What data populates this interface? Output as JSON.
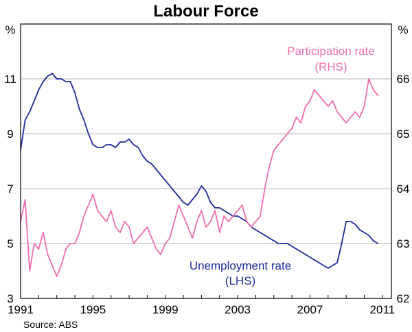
{
  "chart_data": {
    "type": "line",
    "title": "Labour Force",
    "source": "Source: ABS",
    "left_axis": {
      "unit": "%",
      "range": [
        3,
        13
      ],
      "ticks": [
        "3",
        "5",
        "7",
        "9",
        "11"
      ]
    },
    "right_axis": {
      "unit": "%",
      "range": [
        62,
        67
      ],
      "ticks": [
        "62",
        "63",
        "64",
        "65",
        "66"
      ]
    },
    "x_axis": {
      "range": [
        1991,
        2011.5
      ],
      "ticks": [
        "1991",
        "1995",
        "1999",
        "2003",
        "2007",
        "2011"
      ]
    },
    "grid": true,
    "colors": {
      "unemployment": "#1f2a9c",
      "participation": "#ee6fae"
    },
    "series": [
      {
        "name": "Unemployment rate",
        "annotation": [
          "Unemployment rate",
          "(LHS)"
        ],
        "axis": "left",
        "x": [
          1991.0,
          1991.25,
          1991.5,
          1991.75,
          1992.0,
          1992.25,
          1992.5,
          1992.75,
          1993.0,
          1993.25,
          1993.5,
          1993.75,
          1994.0,
          1994.25,
          1994.5,
          1994.75,
          1995.0,
          1995.25,
          1995.5,
          1995.75,
          1996.0,
          1996.25,
          1996.5,
          1996.75,
          1997.0,
          1997.25,
          1997.5,
          1997.75,
          1998.0,
          1998.25,
          1998.5,
          1998.75,
          1999.0,
          1999.25,
          1999.5,
          1999.75,
          2000.0,
          2000.25,
          2000.5,
          2000.75,
          2001.0,
          2001.25,
          2001.5,
          2001.75,
          2002.0,
          2002.25,
          2002.5,
          2002.75,
          2003.0,
          2003.25,
          2003.5,
          2003.75,
          2004.0,
          2004.25,
          2004.5,
          2004.75,
          2005.0,
          2005.25,
          2005.5,
          2005.75,
          2006.0,
          2006.25,
          2006.5,
          2006.75,
          2007.0,
          2007.25,
          2007.5,
          2007.75,
          2008.0,
          2008.25,
          2008.5,
          2008.75,
          2009.0,
          2009.25,
          2009.5,
          2009.75,
          2010.0,
          2010.25,
          2010.5,
          2010.75
        ],
        "values": [
          8.4,
          9.5,
          9.8,
          10.2,
          10.6,
          10.9,
          11.1,
          11.2,
          11.0,
          11.0,
          10.9,
          10.9,
          10.5,
          9.9,
          9.5,
          9.0,
          8.6,
          8.5,
          8.5,
          8.6,
          8.6,
          8.5,
          8.7,
          8.7,
          8.8,
          8.6,
          8.5,
          8.2,
          8.0,
          7.9,
          7.7,
          7.5,
          7.3,
          7.1,
          6.9,
          6.7,
          6.5,
          6.4,
          6.6,
          6.8,
          7.1,
          6.9,
          6.5,
          6.3,
          6.3,
          6.2,
          6.1,
          6.0,
          6.0,
          5.9,
          5.8,
          5.6,
          5.5,
          5.4,
          5.3,
          5.2,
          5.1,
          5.0,
          5.0,
          5.0,
          4.9,
          4.8,
          4.7,
          4.6,
          4.5,
          4.4,
          4.3,
          4.2,
          4.1,
          4.2,
          4.3,
          5.0,
          5.8,
          5.8,
          5.7,
          5.5,
          5.4,
          5.3,
          5.1,
          5.0
        ]
      },
      {
        "name": "Participation rate",
        "annotation": [
          "Participation rate",
          "(RHS)"
        ],
        "axis": "right",
        "x": [
          1991.0,
          1991.25,
          1991.5,
          1991.75,
          1992.0,
          1992.25,
          1992.5,
          1992.75,
          1993.0,
          1993.25,
          1993.5,
          1993.75,
          1994.0,
          1994.25,
          1994.5,
          1994.75,
          1995.0,
          1995.25,
          1995.5,
          1995.75,
          1996.0,
          1996.25,
          1996.5,
          1996.75,
          1997.0,
          1997.25,
          1997.5,
          1997.75,
          1998.0,
          1998.25,
          1998.5,
          1998.75,
          1999.0,
          1999.25,
          1999.5,
          1999.75,
          2000.0,
          2000.25,
          2000.5,
          2000.75,
          2001.0,
          2001.25,
          2001.5,
          2001.75,
          2002.0,
          2002.25,
          2002.5,
          2002.75,
          2003.0,
          2003.25,
          2003.5,
          2003.75,
          2004.0,
          2004.25,
          2004.5,
          2004.75,
          2005.0,
          2005.25,
          2005.5,
          2005.75,
          2006.0,
          2006.25,
          2006.5,
          2006.75,
          2007.0,
          2007.25,
          2007.5,
          2007.75,
          2008.0,
          2008.25,
          2008.5,
          2008.75,
          2009.0,
          2009.25,
          2009.5,
          2009.75,
          2010.0,
          2010.25,
          2010.5,
          2010.75
        ],
        "values": [
          63.4,
          63.8,
          62.5,
          63.0,
          62.9,
          63.2,
          62.8,
          62.6,
          62.4,
          62.6,
          62.9,
          63.0,
          63.0,
          63.2,
          63.5,
          63.7,
          63.9,
          63.6,
          63.5,
          63.4,
          63.6,
          63.3,
          63.2,
          63.4,
          63.3,
          63.0,
          63.1,
          63.2,
          63.3,
          63.1,
          62.9,
          62.8,
          63.0,
          63.1,
          63.4,
          63.7,
          63.5,
          63.3,
          63.1,
          63.4,
          63.6,
          63.3,
          63.4,
          63.6,
          63.2,
          63.5,
          63.4,
          63.5,
          63.6,
          63.7,
          63.4,
          63.3,
          63.4,
          63.5,
          64.0,
          64.4,
          64.7,
          64.8,
          64.9,
          65.0,
          65.1,
          65.3,
          65.2,
          65.5,
          65.6,
          65.8,
          65.7,
          65.6,
          65.5,
          65.6,
          65.4,
          65.3,
          65.2,
          65.3,
          65.4,
          65.3,
          65.5,
          66.0,
          65.8,
          65.7
        ]
      }
    ]
  }
}
